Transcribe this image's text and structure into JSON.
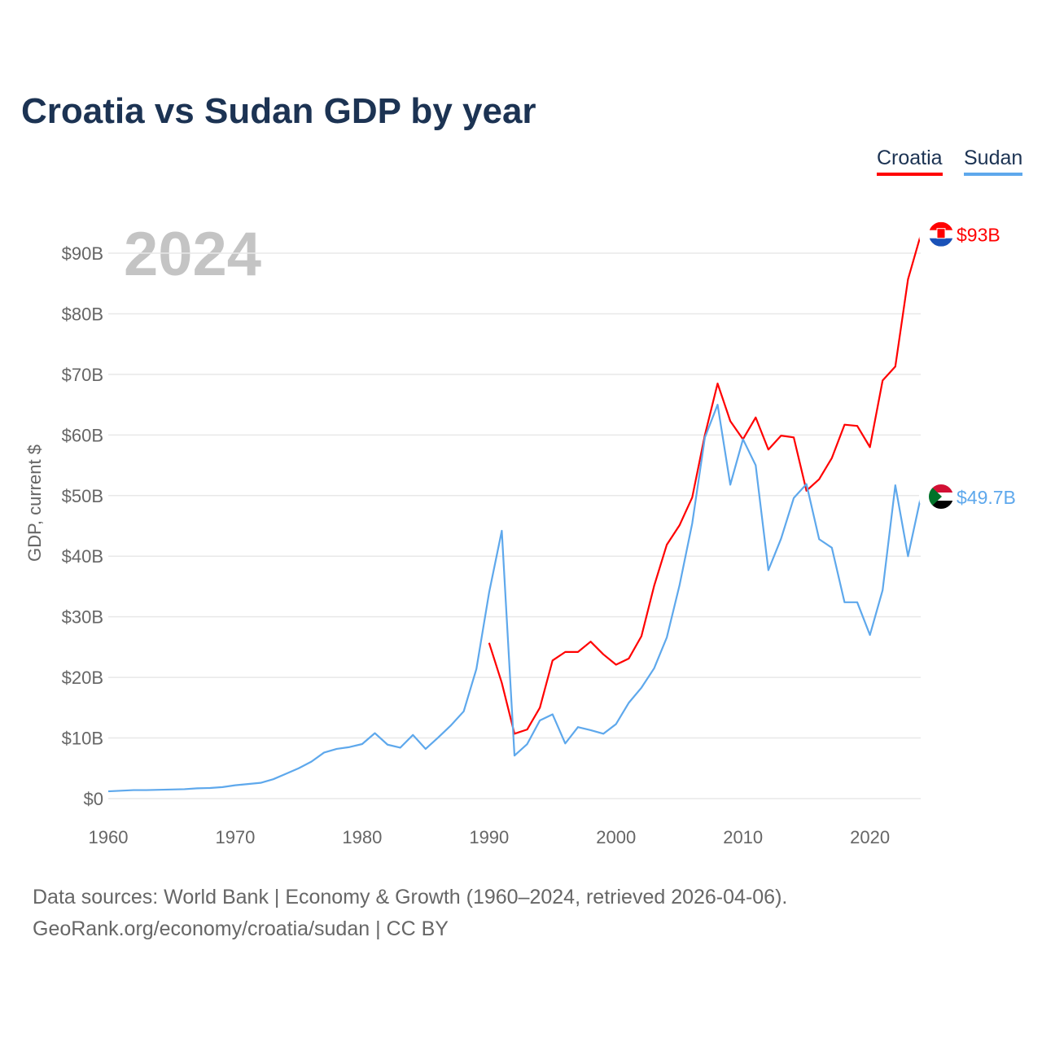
{
  "title": "Croatia vs Sudan GDP by year",
  "colors": {
    "Croatia": "#ff0000",
    "Sudan": "#5ea8ec",
    "grid": "#e8e8e8",
    "year": "#c4c4c4"
  },
  "footer": {
    "line1": "Data sources: World Bank | Economy & Growth (1960–2024, retrieved 2026-04-06).",
    "line2": "GeoRank.org/economy/croatia/sudan | CC BY"
  },
  "chart_data": {
    "type": "line",
    "title": "Croatia vs Sudan GDP by year",
    "ylabel": "GDP, current $",
    "xlabel": "",
    "year_label": "2024",
    "xlim": [
      1960,
      2024
    ],
    "ylim": [
      0,
      95
    ],
    "x_ticks": [
      1960,
      1970,
      1980,
      1990,
      2000,
      2010,
      2020
    ],
    "y_ticks": [
      0,
      10,
      20,
      30,
      40,
      50,
      60,
      70,
      80,
      90
    ],
    "y_tick_labels": [
      "$0",
      "$10B",
      "$20B",
      "$30B",
      "$40B",
      "$50B",
      "$60B",
      "$70B",
      "$80B",
      "$90B"
    ],
    "legend": "top-right",
    "grid": true,
    "series": [
      {
        "name": "Croatia",
        "end_label": "$93B",
        "start_year": 1990,
        "values": [
          25.7,
          19.1,
          10.7,
          11.4,
          15.0,
          22.8,
          24.2,
          24.2,
          25.9,
          23.8,
          22.1,
          23.1,
          26.8,
          35.1,
          41.9,
          45.1,
          49.7,
          60.0,
          68.5,
          62.3,
          59.3,
          62.9,
          57.6,
          59.9,
          59.6,
          50.8,
          52.7,
          56.2,
          61.7,
          61.5,
          58.0,
          69.0,
          71.3,
          85.7,
          93.0
        ]
      },
      {
        "name": "Sudan",
        "end_label": "$49.7B",
        "start_year": 1960,
        "values": [
          1.2,
          1.3,
          1.4,
          1.4,
          1.45,
          1.5,
          1.55,
          1.7,
          1.75,
          1.9,
          2.2,
          2.4,
          2.6,
          3.2,
          4.1,
          5.0,
          6.1,
          7.6,
          8.2,
          8.5,
          9.0,
          10.8,
          8.9,
          8.4,
          10.5,
          8.2,
          10.1,
          12.1,
          14.4,
          21.4,
          34.0,
          44.2,
          7.1,
          9.0,
          12.9,
          13.9,
          9.1,
          11.8,
          11.3,
          10.7,
          12.3,
          15.8,
          18.3,
          21.5,
          26.6,
          35.2,
          45.4,
          59.6,
          65.0,
          51.8,
          59.3,
          55.0,
          37.7,
          42.9,
          49.6,
          51.9,
          42.8,
          41.4,
          32.4,
          32.4,
          27.0,
          34.4,
          51.7,
          40.0,
          49.7
        ]
      }
    ]
  }
}
